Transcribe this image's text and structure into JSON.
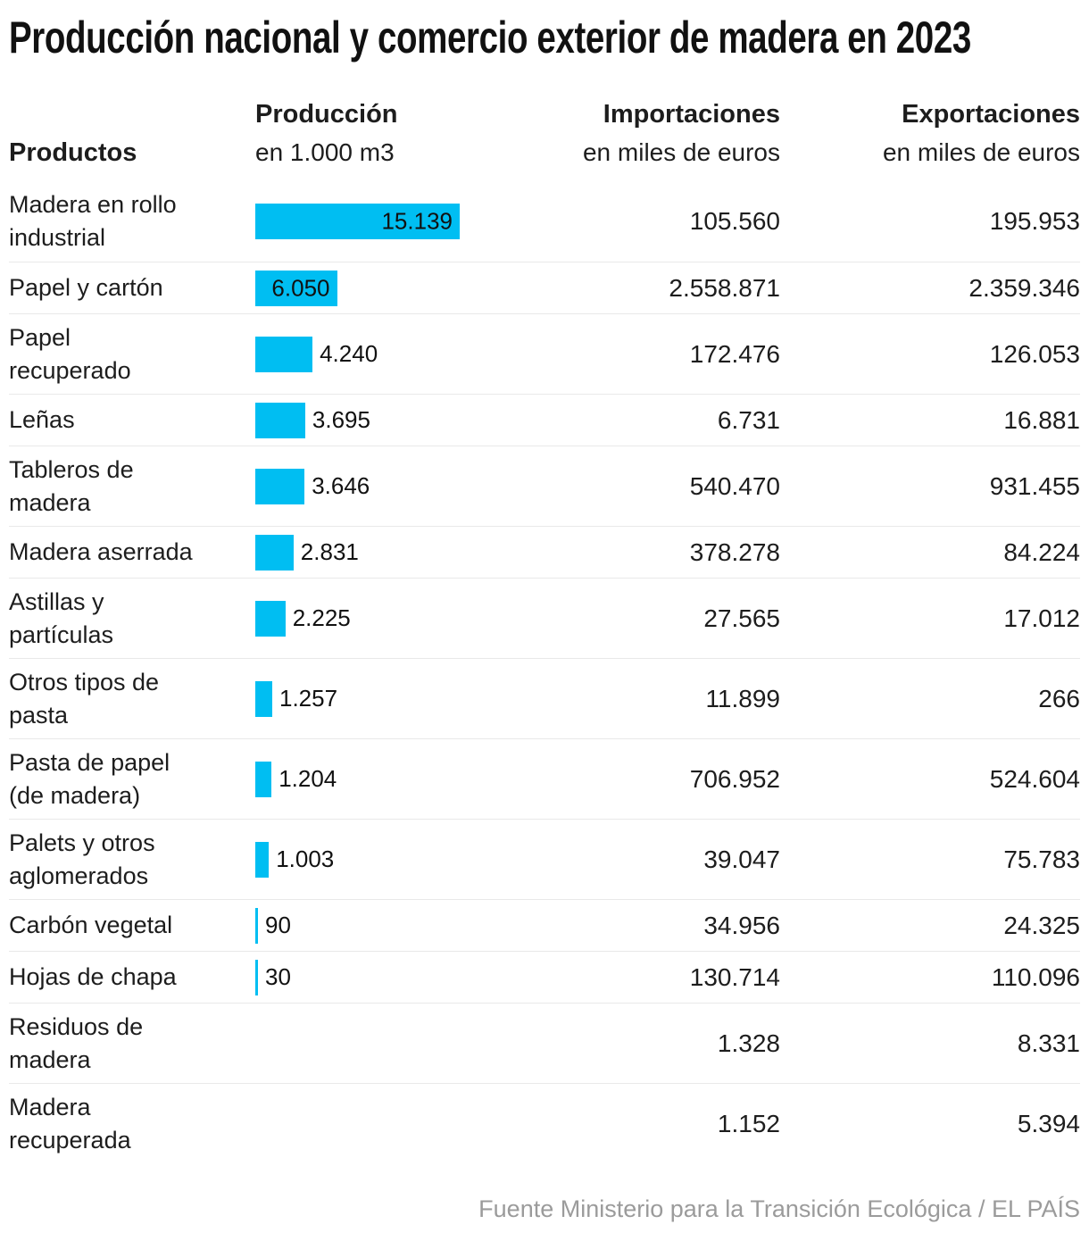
{
  "title": "Producción nacional y comercio exterior de madera en 2023",
  "header": {
    "products_label": "Productos",
    "production_label": "Producción",
    "production_unit": "en 1.000 m3",
    "imports_label": "Importaciones",
    "imports_unit": "en miles de euros",
    "exports_label": "Exportaciones",
    "exports_unit": "en miles de euros"
  },
  "footer": {
    "source": "Fuente Ministerio para la Transición Ecológica / EL PAÍS"
  },
  "colors": {
    "bar": "#00bef2",
    "separator": "#e9e9e9",
    "title_text": "#111111",
    "body_text": "#1d1d1d",
    "footer_text": "#9b9b9b",
    "background": "#ffffff"
  },
  "table": {
    "rows": [
      {
        "product": "Madera en rollo industrial",
        "product_lines": [
          "Madera en rollo",
          "industrial"
        ],
        "production": 15139,
        "production_label": "15.139",
        "imports": "105.560",
        "exports": "195.953"
      },
      {
        "product": "Papel y cartón",
        "product_lines": [
          "Papel y cartón"
        ],
        "production": 6050,
        "production_label": "6.050",
        "imports": "2.558.871",
        "exports": "2.359.346"
      },
      {
        "product": "Papel recuperado",
        "product_lines": [
          "Papel",
          "recuperado"
        ],
        "production": 4240,
        "production_label": "4.240",
        "imports": "172.476",
        "exports": "126.053"
      },
      {
        "product": "Leñas",
        "product_lines": [
          "Leñas"
        ],
        "production": 3695,
        "production_label": "3.695",
        "imports": "6.731",
        "exports": "16.881"
      },
      {
        "product": "Tableros de madera",
        "product_lines": [
          "Tableros de",
          "madera"
        ],
        "production": 3646,
        "production_label": "3.646",
        "imports": "540.470",
        "exports": "931.455"
      },
      {
        "product": "Madera aserrada",
        "product_lines": [
          "Madera aserrada"
        ],
        "production": 2831,
        "production_label": "2.831",
        "imports": "378.278",
        "exports": "84.224"
      },
      {
        "product": "Astillas y partículas",
        "product_lines": [
          "Astillas y",
          "partículas"
        ],
        "production": 2225,
        "production_label": "2.225",
        "imports": "27.565",
        "exports": "17.012"
      },
      {
        "product": "Otros tipos de pasta",
        "product_lines": [
          "Otros tipos de",
          "pasta"
        ],
        "production": 1257,
        "production_label": "1.257",
        "imports": "11.899",
        "exports": "266"
      },
      {
        "product": "Pasta de papel (de madera)",
        "product_lines": [
          "Pasta de papel",
          "(de madera)"
        ],
        "production": 1204,
        "production_label": "1.204",
        "imports": "706.952",
        "exports": "524.604"
      },
      {
        "product": "Palets y otros aglomerados",
        "product_lines": [
          "Palets y otros",
          "aglomerados"
        ],
        "production": 1003,
        "production_label": "1.003",
        "imports": "39.047",
        "exports": "75.783"
      },
      {
        "product": "Carbón vegetal",
        "product_lines": [
          "Carbón vegetal"
        ],
        "production": 90,
        "production_label": "90",
        "imports": "34.956",
        "exports": "24.325"
      },
      {
        "product": "Hojas de chapa",
        "product_lines": [
          "Hojas de chapa"
        ],
        "production": 30,
        "production_label": "30",
        "imports": "130.714",
        "exports": "110.096"
      },
      {
        "product": "Residuos de madera",
        "product_lines": [
          "Residuos de",
          "madera"
        ],
        "production": null,
        "production_label": "",
        "imports": "1.328",
        "exports": "8.331"
      },
      {
        "product": "Madera recuperada",
        "product_lines": [
          "Madera",
          "recuperada"
        ],
        "production": null,
        "production_label": "",
        "imports": "1.152",
        "exports": "5.394"
      }
    ]
  },
  "chart_data": {
    "type": "bar",
    "orientation": "horizontal",
    "title": "Producción nacional y comercio exterior de madera en 2023",
    "categories": [
      "Madera en rollo industrial",
      "Papel y cartón",
      "Papel recuperado",
      "Leñas",
      "Tableros de madera",
      "Madera aserrada",
      "Astillas y partículas",
      "Otros tipos de pasta",
      "Pasta de papel (de madera)",
      "Palets y otros aglomerados",
      "Carbón vegetal",
      "Hojas de chapa",
      "Residuos de madera",
      "Madera recuperada"
    ],
    "series": [
      {
        "name": "Producción",
        "unit": "1.000 m3",
        "values": [
          15139,
          6050,
          4240,
          3695,
          3646,
          2831,
          2225,
          1257,
          1204,
          1003,
          90,
          30,
          null,
          null
        ]
      },
      {
        "name": "Importaciones",
        "unit": "miles de euros",
        "values": [
          105560,
          2558871,
          172476,
          6731,
          540470,
          378278,
          27565,
          11899,
          706952,
          39047,
          34956,
          130714,
          1328,
          1152
        ]
      },
      {
        "name": "Exportaciones",
        "unit": "miles de euros",
        "values": [
          195953,
          2359346,
          126053,
          16881,
          931455,
          84224,
          17012,
          266,
          524604,
          75783,
          24325,
          110096,
          8331,
          5394
        ]
      }
    ],
    "bar_axis_range": [
      0,
      15139
    ],
    "grid": false,
    "legend_position": "none",
    "source": "Ministerio para la Transición Ecológica / EL PAÍS"
  }
}
